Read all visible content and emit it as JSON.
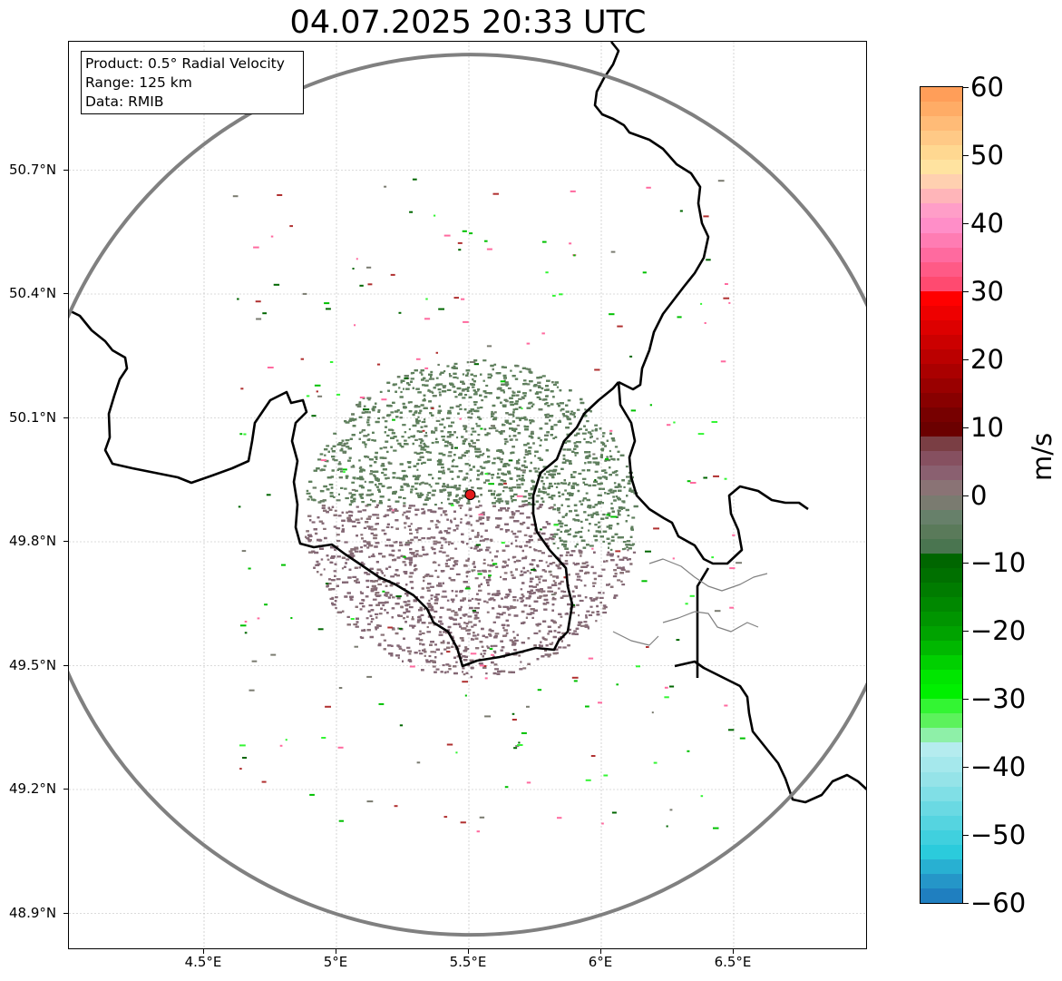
{
  "title": "04.07.2025 20:33 UTC",
  "info_box": {
    "product": "Product: 0.5° Radial Velocity",
    "range": "Range: 125 km",
    "data": "Data: RMIB"
  },
  "map": {
    "lon_range": [
      4.0,
      7.0
    ],
    "lat_range": [
      48.8,
      51.0
    ],
    "x_ticks": [
      "4.5°E",
      "5°E",
      "5.5°E",
      "6°E",
      "6.5°E"
    ],
    "y_ticks": [
      "50.7°N",
      "50.4°N",
      "50.1°N",
      "49.8°N",
      "49.5°N",
      "49.2°N",
      "48.9°N"
    ],
    "gridlines": true,
    "radar_site": {
      "lon": 5.505,
      "lat": 49.914,
      "color": "#e31a1c"
    },
    "range_ring_color": "#808080",
    "border_color": "#000000",
    "admin_border_color": "#808080"
  },
  "colorbar": {
    "unit": "m/s",
    "min": -60,
    "max": 60,
    "tick_labels": [
      "60",
      "50",
      "40",
      "30",
      "20",
      "10",
      "0",
      "−10",
      "−20",
      "−30",
      "−40",
      "−50",
      "−60"
    ],
    "colors_top_to_bottom": [
      "#ff9e59",
      "#ffac66",
      "#ffbb77",
      "#ffc986",
      "#ffd891",
      "#ffe3a0",
      "#ffd0b0",
      "#ffb5b9",
      "#ff9ec8",
      "#ff8ec8",
      "#ff7cb3",
      "#ff6a9f",
      "#ff5a86",
      "#ff4a70",
      "#ff0000",
      "#ee0000",
      "#dd0000",
      "#cc0000",
      "#bb0000",
      "#aa0000",
      "#990000",
      "#880000",
      "#770000",
      "#6b0000",
      "#7a3e44",
      "#865060",
      "#8a6070",
      "#8a7375",
      "#7a7b70",
      "#67806a",
      "#5a7a5a",
      "#4a7550",
      "#006600",
      "#007000",
      "#007c00",
      "#008800",
      "#009500",
      "#00a300",
      "#00b800",
      "#00d000",
      "#00e600",
      "#00f000",
      "#33f533",
      "#5cf25c",
      "#8ef0a8",
      "#b5ecef",
      "#a5e8ec",
      "#95e3e8",
      "#80dfe6",
      "#6ad9e3",
      "#55d4e0",
      "#40d0de",
      "#2bcbdc",
      "#28b0d2",
      "#2596c8",
      "#1f7fc0"
    ]
  }
}
